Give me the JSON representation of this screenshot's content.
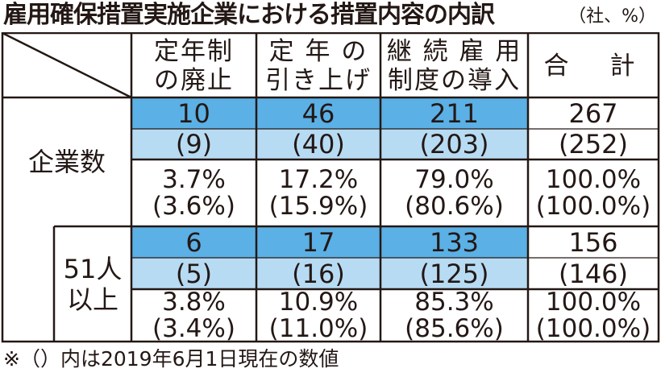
{
  "title": "雇用確保措置実施企業における措置内容の内訳",
  "unit": "（社、%）",
  "columns": [
    {
      "line1": "定年制",
      "line2": "の廃止"
    },
    {
      "line1": "定 年 の",
      "line2": "引き上げ"
    },
    {
      "line1": "継 続 雇 用",
      "line2": "制度の導入"
    },
    {
      "line1": "合　計",
      "line2": ""
    }
  ],
  "groups": [
    {
      "label_line1": "企業数",
      "label_line2": "",
      "counts": [
        "10",
        "46",
        "211",
        "267"
      ],
      "counts_prev": [
        "(9)",
        "(40)",
        "(203)",
        "(252)"
      ],
      "pct": [
        "3.7%",
        "17.2%",
        "79.0%",
        "100.0%"
      ],
      "pct_prev": [
        "(3.6%)",
        "(15.9%)",
        "(80.6%)",
        "(100.0%)"
      ]
    },
    {
      "label_line1": "51人",
      "label_line2": "以上",
      "counts": [
        "6",
        "17",
        "133",
        "156"
      ],
      "counts_prev": [
        "(5)",
        "(16)",
        "(125)",
        "(146)"
      ],
      "pct": [
        "3.8%",
        "10.9%",
        "85.3%",
        "100.0%"
      ],
      "pct_prev": [
        "(3.4%)",
        "(11.0%)",
        "(85.6%)",
        "(100.0%)"
      ]
    }
  ],
  "footnote": "※（）内は2019年6月1日現在の数値",
  "colors": {
    "blue_dark": "#5bb0e5",
    "blue_light": "#b7dbf3",
    "line": "#231815"
  }
}
